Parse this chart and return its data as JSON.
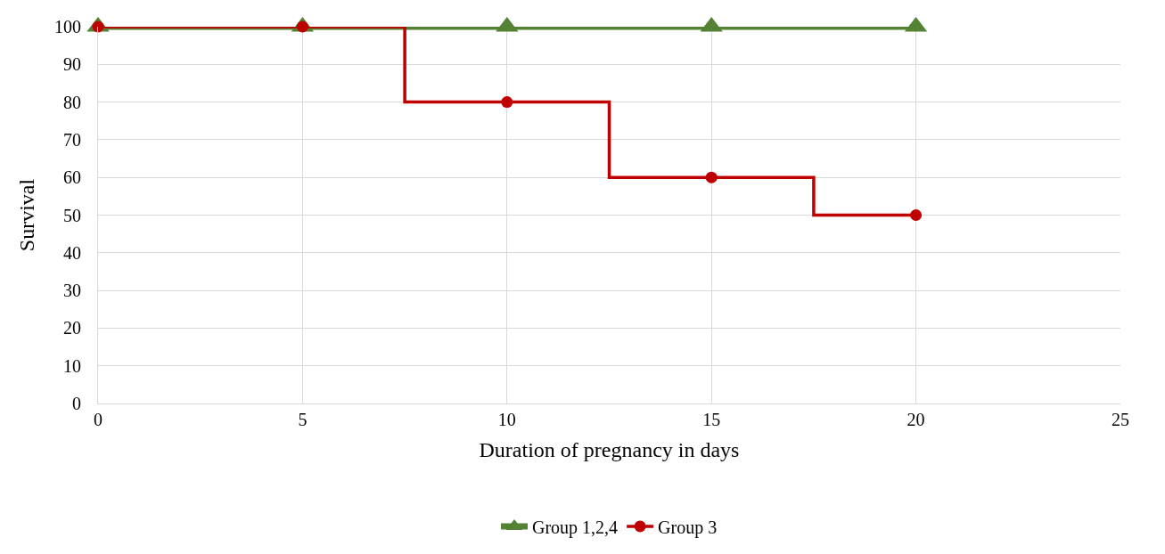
{
  "chart_data": {
    "type": "line",
    "xlabel": "Duration of pregnancy in days",
    "ylabel": "Survival",
    "x": [
      0,
      5,
      10,
      15,
      20
    ],
    "series": [
      {
        "name": "Group 1,2,4",
        "color": "#548235",
        "values": [
          100,
          100,
          100,
          100,
          100
        ],
        "marker": "triangle"
      },
      {
        "name": "Group 3",
        "type": "step",
        "color": "#c00000",
        "values": [
          100,
          100,
          80,
          60,
          50
        ],
        "marker": "circle"
      }
    ],
    "xlim": [
      0,
      25
    ],
    "xticks": [
      0,
      5,
      10,
      15,
      20,
      25
    ],
    "ylim": [
      0,
      100
    ],
    "yticks": [
      0,
      10,
      20,
      30,
      40,
      50,
      60,
      70,
      80,
      90,
      100
    ],
    "grid": true,
    "legend": "bottom",
    "line_style": "solid"
  }
}
